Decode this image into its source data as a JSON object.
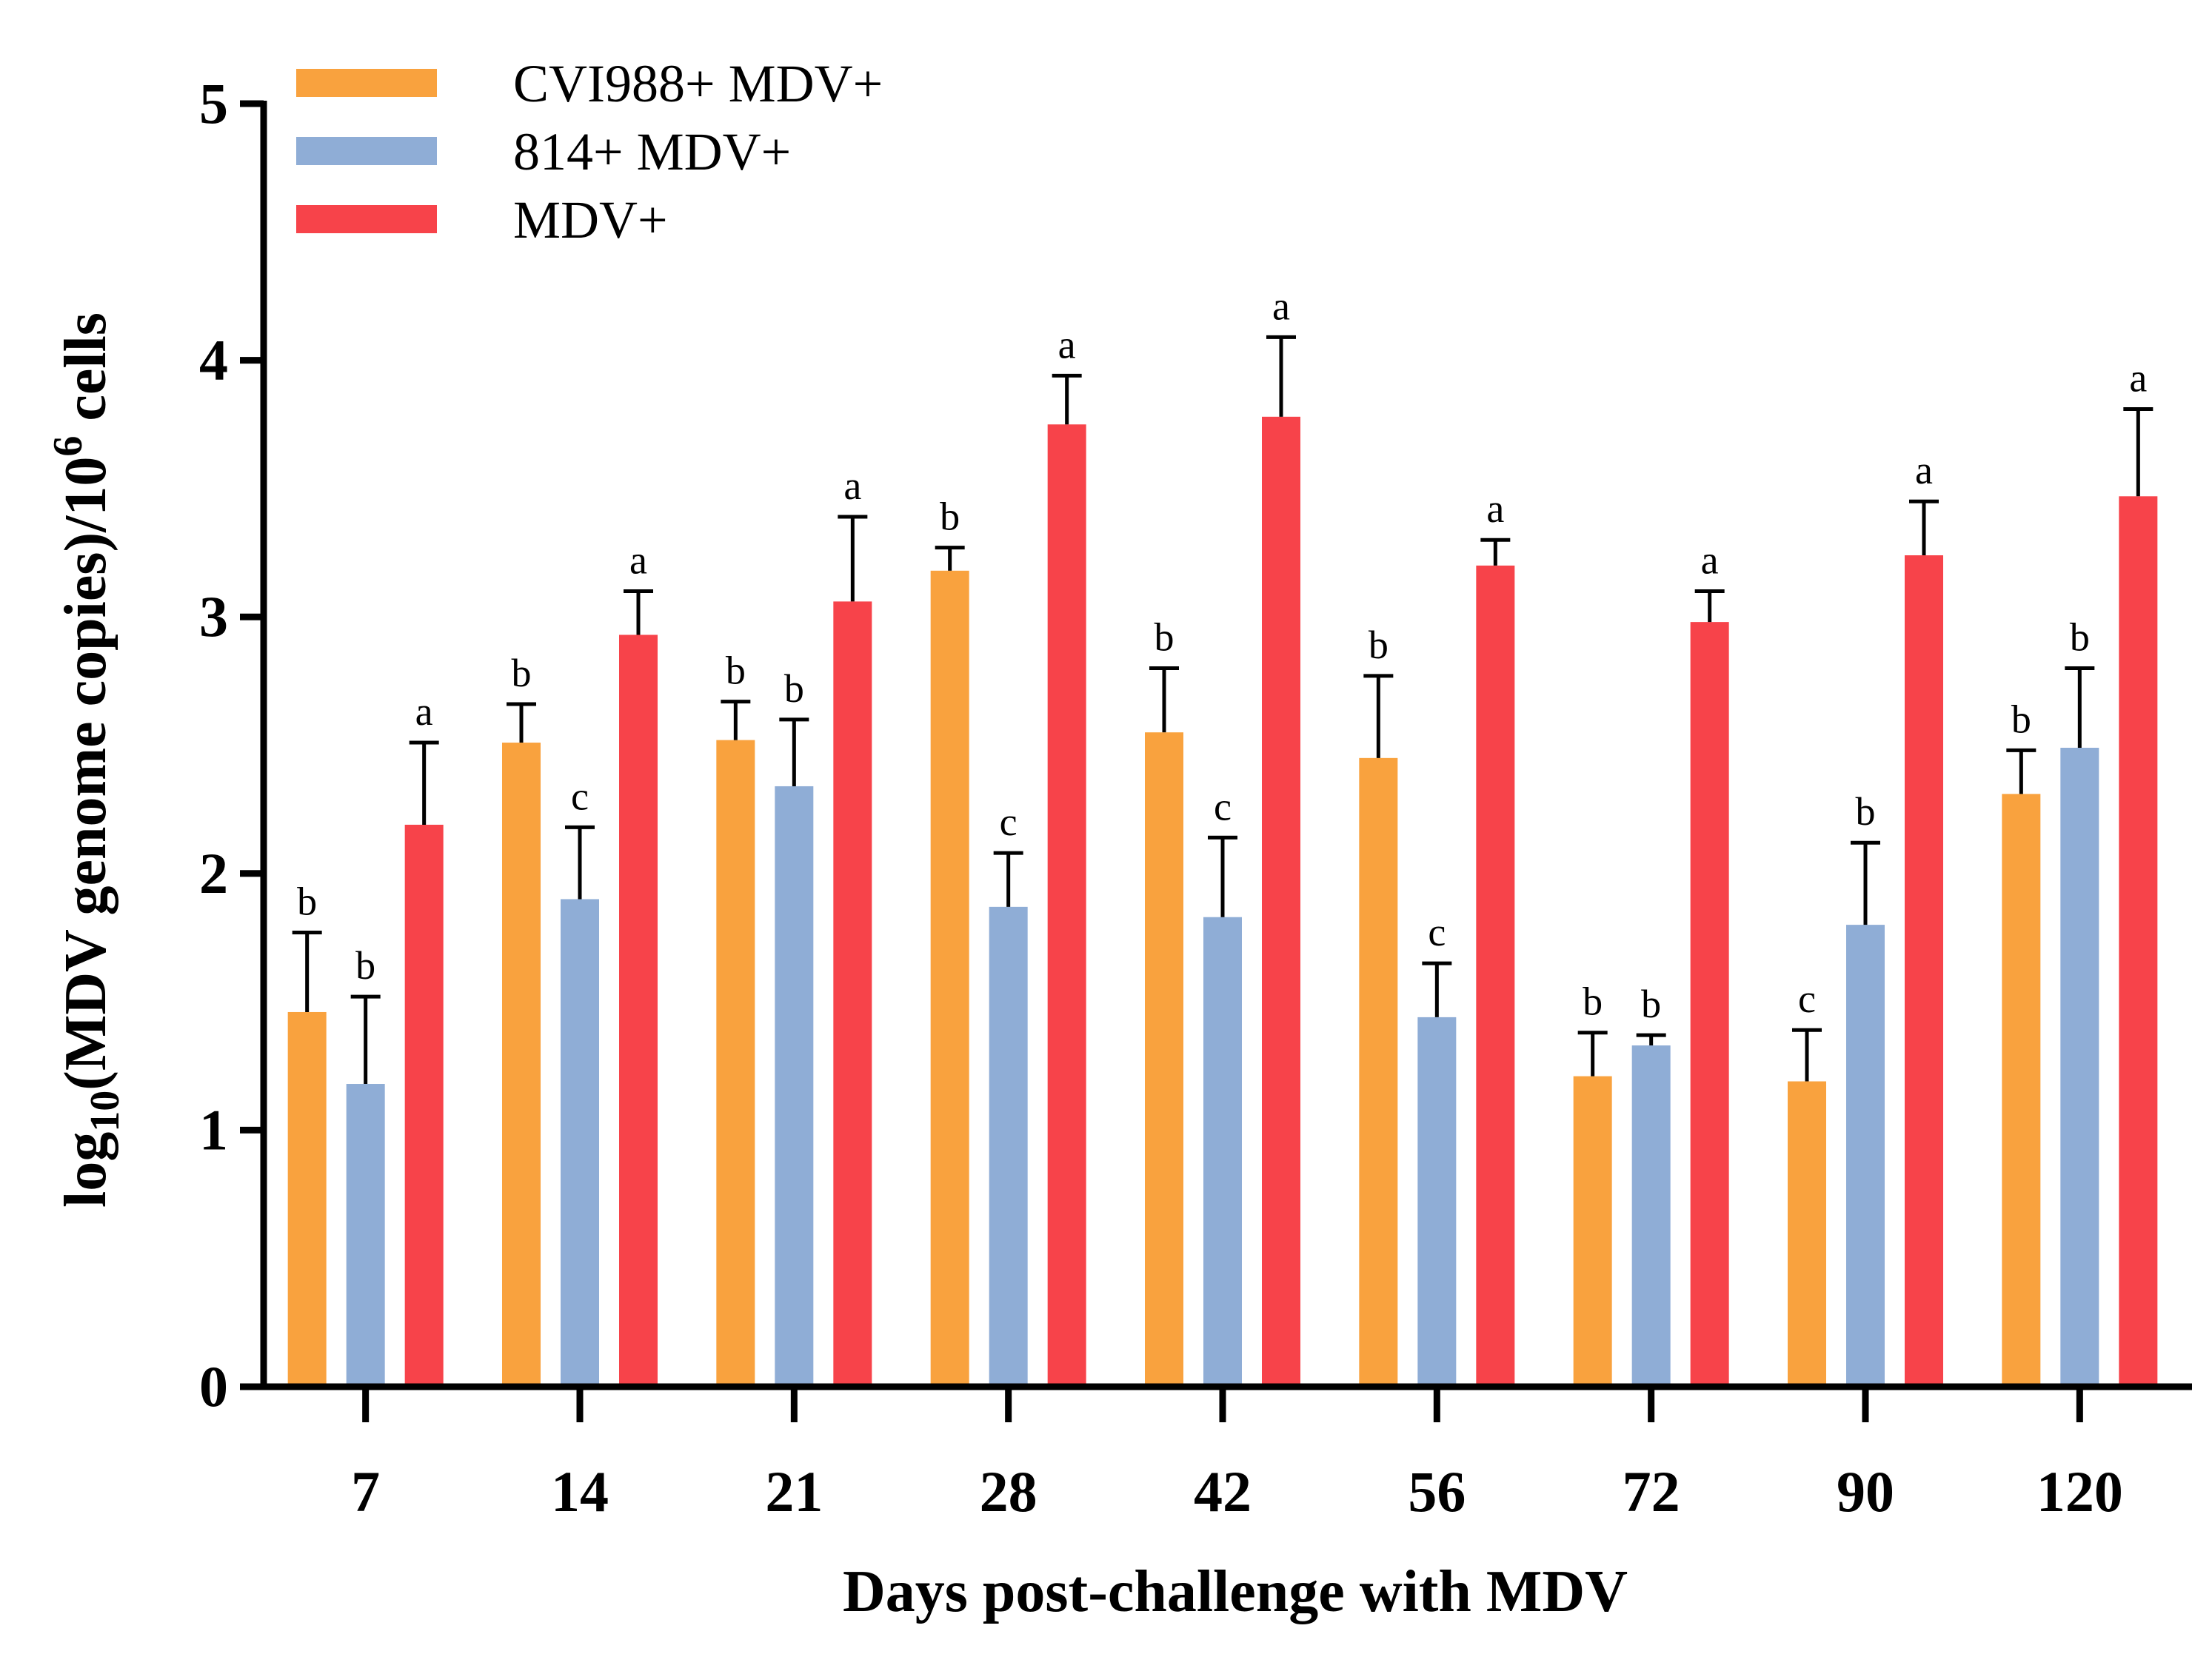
{
  "chart_data": {
    "type": "bar",
    "xlabel": "Days post-challenge with MDV",
    "ylabel_parts": {
      "prefix": "log",
      "sub": "10",
      "middle": "(MDV genome copies)/10",
      "sup": "6",
      "suffix": " cells"
    },
    "ylim": [
      0,
      5
    ],
    "yticks": [
      "0",
      "1",
      "2",
      "3",
      "4",
      "5"
    ],
    "categories": [
      "7",
      "14",
      "21",
      "28",
      "42",
      "56",
      "72",
      "90",
      "120"
    ],
    "legend_position": "top-left",
    "grid": false,
    "series": [
      {
        "name": "CVI988+ MDV+",
        "color": "#F9A23E",
        "values": [
          1.46,
          2.51,
          2.52,
          3.18,
          2.55,
          2.45,
          1.21,
          1.19,
          2.31
        ],
        "errors": [
          0.31,
          0.15,
          0.15,
          0.09,
          0.25,
          0.32,
          0.17,
          0.2,
          0.17
        ],
        "labels": [
          "b",
          "b",
          "b",
          "b",
          "b",
          "b",
          "b",
          "c",
          "b"
        ]
      },
      {
        "name": "814+ MDV+",
        "color": "#8FADD6",
        "values": [
          1.18,
          1.9,
          2.34,
          1.87,
          1.83,
          1.44,
          1.33,
          1.8,
          2.49
        ],
        "errors": [
          0.34,
          0.28,
          0.26,
          0.21,
          0.31,
          0.21,
          0.04,
          0.32,
          0.31
        ],
        "labels": [
          "b",
          "c",
          "b",
          "c",
          "c",
          "c",
          "b",
          "b",
          "b"
        ]
      },
      {
        "name": "MDV+",
        "color": "#F7434A",
        "values": [
          2.19,
          2.93,
          3.06,
          3.75,
          3.78,
          3.2,
          2.98,
          3.24,
          3.47
        ],
        "errors": [
          0.32,
          0.17,
          0.33,
          0.19,
          0.31,
          0.1,
          0.12,
          0.21,
          0.34
        ],
        "labels": [
          "a",
          "a",
          "a",
          "a",
          "a",
          "a",
          "a",
          "a",
          "a"
        ]
      }
    ]
  }
}
